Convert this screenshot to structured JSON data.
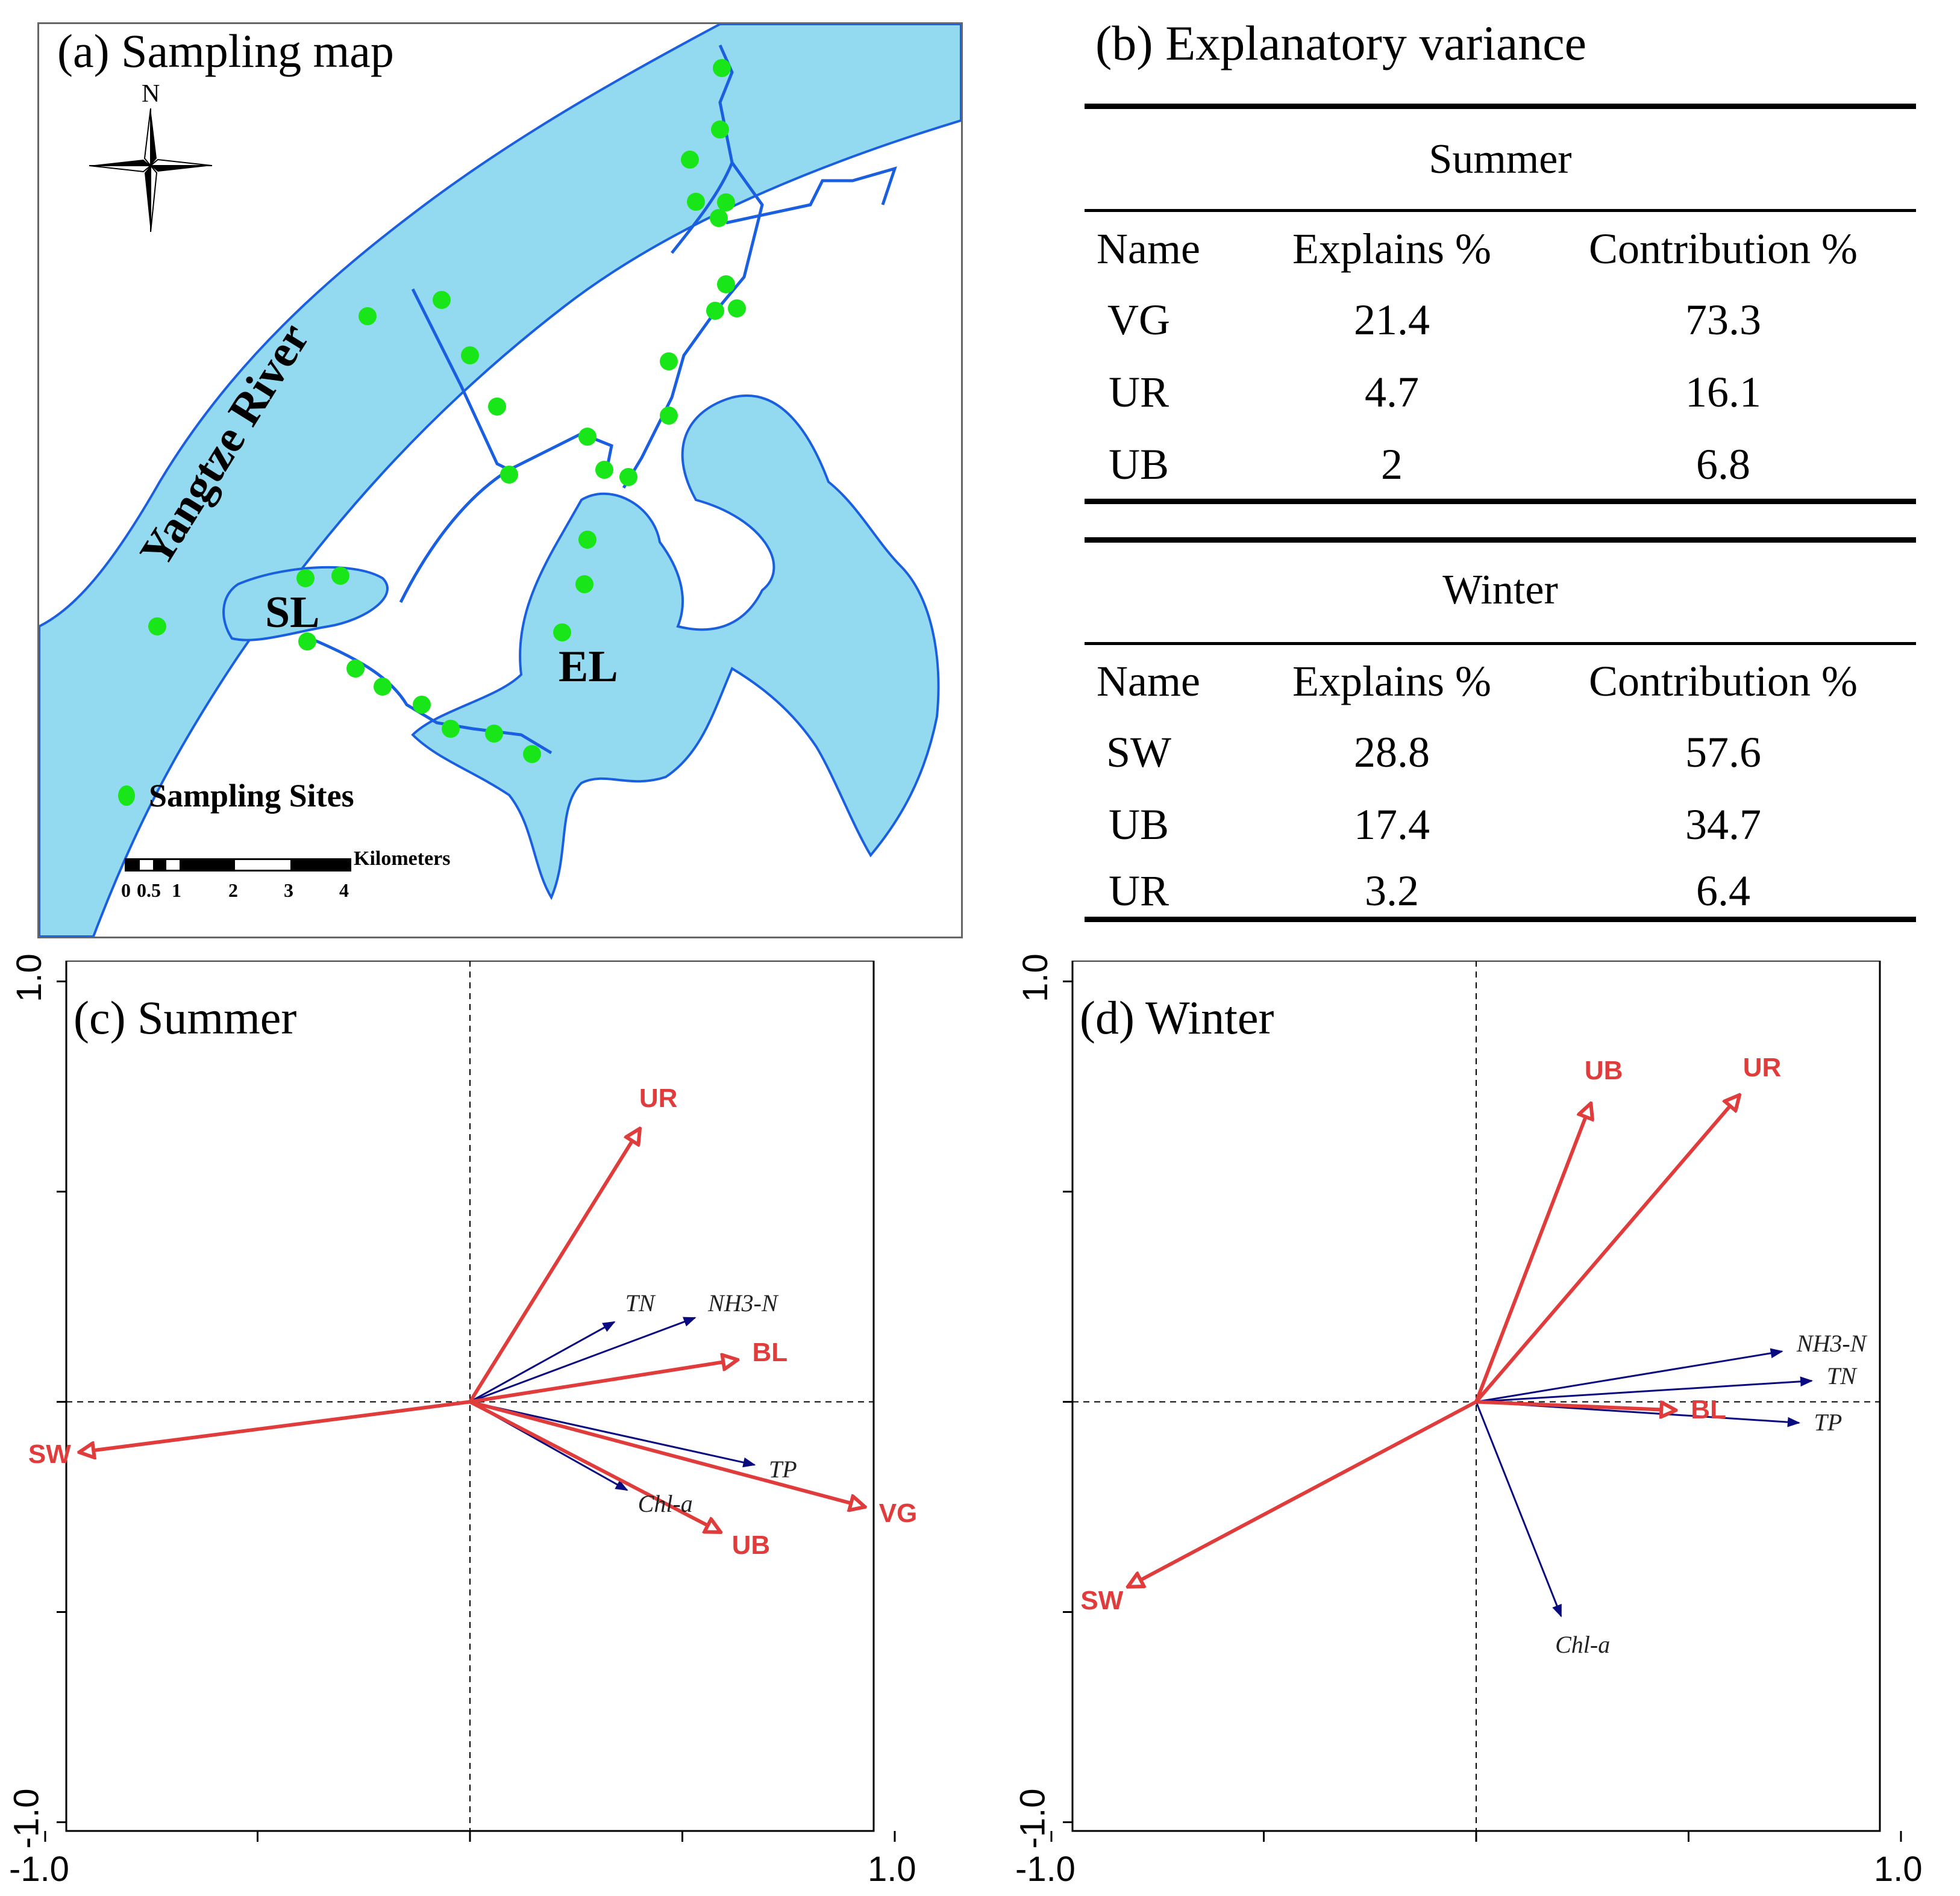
{
  "map": {
    "title": "(a) Sampling map",
    "compass_label": "N",
    "river_label": "Yangtze River",
    "lakes": [
      {
        "label": "SL"
      },
      {
        "label": "EL"
      }
    ],
    "legend": {
      "label": "Sampling Sites",
      "marker_color": "#19e619",
      "swatch_color": "#93daf1"
    },
    "scale": {
      "units": "Kilometers",
      "ticks": [
        "0",
        "0.5",
        "1",
        "2",
        "3",
        "4"
      ]
    },
    "colors": {
      "water": "#93daf1",
      "outline": "#1a5fe0",
      "site": "#19e619"
    }
  },
  "table": {
    "title": "(b) Explanatory variance",
    "headers": [
      "Name",
      "Explains %",
      "Contribution %"
    ],
    "sections": [
      {
        "season": "Summer",
        "rows": [
          {
            "name": "VG",
            "explains": "21.4",
            "contribution": "73.3"
          },
          {
            "name": "UR",
            "explains": "4.7",
            "contribution": "16.1"
          },
          {
            "name": "UB",
            "explains": "2",
            "contribution": "6.8"
          }
        ]
      },
      {
        "season": "Winter",
        "rows": [
          {
            "name": "SW",
            "explains": "28.8",
            "contribution": "57.6"
          },
          {
            "name": "UB",
            "explains": "17.4",
            "contribution": "34.7"
          },
          {
            "name": "UR",
            "explains": "3.2",
            "contribution": "6.4"
          }
        ]
      }
    ]
  },
  "chart_data": [
    {
      "type": "scatter",
      "title": "(c) Summer",
      "subtype": "RDA biplot (vectors)",
      "xlim": [
        -1.0,
        1.0
      ],
      "ylim": [
        -1.0,
        1.0
      ],
      "x_tick_labels": [
        "-1.0",
        "1.0"
      ],
      "y_tick_labels": [
        "1.0",
        "-1.0"
      ],
      "explanatory_color": "#e03c3c",
      "response_color": "#0a0a80",
      "explanatory": [
        {
          "name": "UR",
          "x": 0.4,
          "y": 0.65
        },
        {
          "name": "BL",
          "x": 0.63,
          "y": 0.1
        },
        {
          "name": "SW",
          "x": -0.92,
          "y": -0.12
        },
        {
          "name": "VG",
          "x": 0.93,
          "y": -0.25
        },
        {
          "name": "UB",
          "x": 0.59,
          "y": -0.31
        }
      ],
      "response": [
        {
          "name": "TN",
          "x": 0.34,
          "y": 0.19
        },
        {
          "name": "NH3-N",
          "x": 0.53,
          "y": 0.2
        },
        {
          "name": "TP",
          "x": 0.67,
          "y": -0.15
        },
        {
          "name": "Chl-a",
          "x": 0.37,
          "y": -0.21
        }
      ]
    },
    {
      "type": "scatter",
      "title": "(d) Winter",
      "subtype": "RDA biplot (vectors)",
      "xlim": [
        -1.0,
        1.0
      ],
      "ylim": [
        -1.0,
        1.0
      ],
      "x_tick_labels": [
        "-1.0",
        "1.0"
      ],
      "y_tick_labels": [
        "1.0",
        "-1.0"
      ],
      "explanatory_color": "#e03c3c",
      "response_color": "#0a0a80",
      "explanatory": [
        {
          "name": "UB",
          "x": 0.27,
          "y": 0.71
        },
        {
          "name": "UR",
          "x": 0.62,
          "y": 0.73
        },
        {
          "name": "BL",
          "x": 0.47,
          "y": -0.02
        },
        {
          "name": "SW",
          "x": -0.82,
          "y": -0.44
        }
      ],
      "response": [
        {
          "name": "NH3-N",
          "x": 0.72,
          "y": 0.12
        },
        {
          "name": "TN",
          "x": 0.79,
          "y": 0.05
        },
        {
          "name": "TP",
          "x": 0.76,
          "y": -0.05
        },
        {
          "name": "Chl-a",
          "x": 0.2,
          "y": -0.51
        }
      ]
    }
  ]
}
